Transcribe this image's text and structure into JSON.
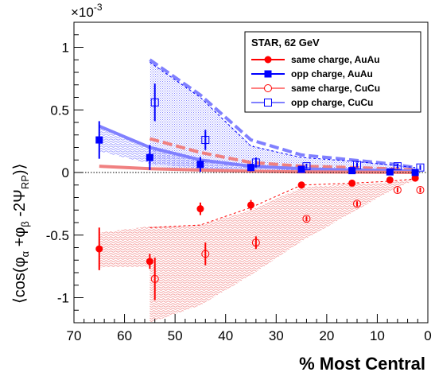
{
  "chart_data": {
    "type": "scatter",
    "xlabel": "% Most Central",
    "ylabel_parts": {
      "open": "⟨cos(φ",
      "sub_a": "α",
      "mid": " +φ",
      "sub_b": "β",
      "rest": " -2Ψ",
      "sub_rp": "RP",
      "close": ")⟩"
    },
    "scale_label": {
      "base": "×10",
      "exp": "-3"
    },
    "xlim": [
      70,
      0
    ],
    "ylim": [
      -1.2,
      1.2
    ],
    "x_ticks": [
      70,
      60,
      50,
      40,
      30,
      20,
      10,
      0
    ],
    "y_ticks": [
      -1,
      -0.5,
      0,
      0.5,
      1
    ],
    "y_tick_labels": [
      "-1",
      "-0.5",
      "0",
      "0.5",
      "1"
    ],
    "zero_line": "dotted",
    "legend": {
      "position": "top-right",
      "title": "STAR,  62 GeV",
      "entries": [
        {
          "label": "same charge, AuAu",
          "series": "same_auau"
        },
        {
          "label": "opp charge, AuAu",
          "series": "opp_auau"
        },
        {
          "label": "same charge, CuCu",
          "series": "same_cucu"
        },
        {
          "label": "opp charge, CuCu",
          "series": "opp_cucu"
        }
      ]
    },
    "colors": {
      "red": "#ff0000",
      "blue": "#0000ff",
      "red_band": "#f08080",
      "blue_band": "#8080ff"
    },
    "series": [
      {
        "id": "same_auau",
        "name": "same charge, AuAu",
        "color": "#ff0000",
        "marker": "filled-circle",
        "x": [
          65,
          55,
          45,
          35,
          25,
          15,
          7.5,
          2.5
        ],
        "y": [
          -0.61,
          -0.71,
          -0.29,
          -0.26,
          -0.1,
          -0.085,
          -0.06,
          -0.045
        ],
        "yerr": [
          0.17,
          0.06,
          0.05,
          0.04,
          0.02,
          0.02,
          0.02,
          0.02
        ]
      },
      {
        "id": "opp_auau",
        "name": "opp charge, AuAu",
        "color": "#0000ff",
        "marker": "filled-square",
        "x": [
          65,
          55,
          45,
          35,
          25,
          15,
          7.5,
          2.5
        ],
        "y": [
          0.26,
          0.12,
          0.065,
          0.04,
          0.025,
          0.015,
          0.005,
          0.0
        ],
        "yerr": [
          0.15,
          0.1,
          0.06,
          0.03,
          0.02,
          0.015,
          0.015,
          0.015
        ]
      },
      {
        "id": "same_cucu",
        "name": "same charge, CuCu",
        "color": "#ff0000",
        "marker": "open-circle",
        "x": [
          54,
          44,
          34,
          24,
          14,
          6,
          1.5
        ],
        "y": [
          -0.85,
          -0.65,
          -0.56,
          -0.37,
          -0.25,
          -0.14,
          -0.14
        ],
        "yerr": [
          0.17,
          0.09,
          0.05,
          0.02,
          0.02,
          0.02,
          0.02
        ]
      },
      {
        "id": "opp_cucu",
        "name": "opp charge, CuCu",
        "color": "#0000ff",
        "marker": "open-square",
        "x": [
          54,
          44,
          34,
          24,
          14,
          6,
          1.5
        ],
        "y": [
          0.56,
          0.26,
          0.08,
          0.05,
          0.06,
          0.05,
          0.04
        ],
        "yerr": [
          0.15,
          0.08,
          0.04,
          0.02,
          0.02,
          0.02,
          0.02
        ]
      }
    ],
    "bands": [
      {
        "id": "red_band_cucu",
        "color": "#f08080",
        "pattern": "wavy",
        "x": [
          55,
          45,
          35,
          25,
          15,
          7.5,
          2.5
        ],
        "upper": [
          -0.43,
          -0.42,
          -0.3,
          -0.12,
          -0.09,
          -0.08,
          -0.05
        ],
        "lower": [
          -1.2,
          -1.06,
          -0.82,
          -0.55,
          -0.32,
          -0.15,
          -0.06
        ]
      },
      {
        "id": "red_band_auau",
        "color": "#f08080",
        "pattern": "wavy",
        "x": [
          65,
          55
        ],
        "upper": [
          -0.48,
          -0.43
        ],
        "lower": [
          -0.76,
          -0.75
        ]
      },
      {
        "id": "blue_band_cucu",
        "color": "#8080ff",
        "pattern": "dotted",
        "x": [
          55,
          45,
          35,
          25,
          15,
          7.5,
          2.5
        ],
        "upper": [
          0.9,
          0.6,
          0.22,
          0.12,
          0.09,
          0.06,
          0.04
        ],
        "lower": [
          0.05,
          0.02,
          0.01,
          0.005,
          0.0,
          0.0,
          0.0
        ]
      },
      {
        "id": "blue_band_auau",
        "color": "#8080ff",
        "pattern": "wavy",
        "x": [
          65,
          55,
          45,
          35,
          25,
          15,
          7.5,
          2.5
        ],
        "upper": [
          0.37,
          0.2,
          0.1,
          0.05,
          0.03,
          0.02,
          0.015,
          0.01
        ],
        "lower": [
          0.17,
          0.07,
          0.03,
          0.015,
          0.01,
          0.005,
          0.0,
          0.0
        ]
      }
    ],
    "lines": [
      {
        "id": "blue_dashed",
        "color": "#8080ff",
        "style": "dashed",
        "x": [
          55,
          45,
          35,
          25,
          15,
          7.5,
          2.5
        ],
        "y": [
          0.9,
          0.62,
          0.26,
          0.14,
          0.1,
          0.07,
          0.04
        ]
      },
      {
        "id": "red_dashed",
        "color": "#f08080",
        "style": "dashed",
        "x": [
          55,
          45,
          35,
          25,
          15,
          7.5,
          2.5
        ],
        "y": [
          0.27,
          0.16,
          0.08,
          0.05,
          0.04,
          0.03,
          0.02
        ]
      },
      {
        "id": "blue_solid",
        "color": "#8080ff",
        "style": "solid",
        "x": [
          65,
          55,
          45,
          35,
          25,
          15,
          7.5,
          2.5
        ],
        "y": [
          0.37,
          0.2,
          0.1,
          0.05,
          0.03,
          0.02,
          0.015,
          0.01
        ]
      },
      {
        "id": "red_solid",
        "color": "#f08080",
        "style": "solid",
        "x": [
          65,
          55,
          45,
          35,
          25,
          15,
          7.5,
          2.5
        ],
        "y": [
          0.05,
          0.03,
          0.02,
          0.01,
          0.005,
          0.003,
          0.002,
          0.0
        ]
      },
      {
        "id": "red_dashed_lower",
        "color": "#ff0000",
        "style": "dashed-thin",
        "x": [
          55,
          45,
          35,
          25,
          15,
          7.5,
          2.5
        ],
        "y": [
          -0.44,
          -0.42,
          -0.28,
          -0.1,
          -0.085,
          -0.07,
          -0.05
        ]
      },
      {
        "id": "blue_dashed_upper",
        "color": "#0000ff",
        "style": "dashed-thin",
        "x": [
          55,
          45,
          35,
          25,
          15,
          7.5,
          2.5
        ],
        "y": [
          0.88,
          0.6,
          0.21,
          0.12,
          0.09,
          0.06,
          0.04
        ]
      }
    ]
  }
}
